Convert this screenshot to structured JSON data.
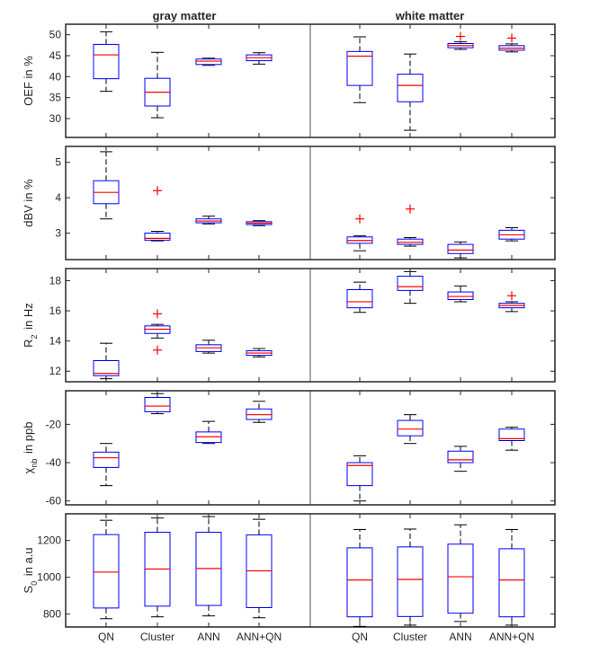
{
  "figure": {
    "column_titles": [
      "gray matter",
      "white matter"
    ],
    "categories": [
      "QN",
      "Cluster",
      "ANN",
      "ANN+QN"
    ],
    "colors": {
      "box": "#0000ff",
      "median": "#ff0000",
      "whisker": "#000000",
      "outlier": "#ff0000",
      "axes": "#262626"
    }
  },
  "chart_data": [
    {
      "type": "box",
      "ylabel": "OEF in %",
      "ylim": [
        25.5,
        52.5
      ],
      "yticks": [
        30,
        35,
        40,
        45,
        50
      ],
      "groups": [
        {
          "name": "gray matter",
          "boxes": [
            {
              "category": "QN",
              "whisker_low": 36.5,
              "q1": 39.5,
              "median": 45.2,
              "q3": 47.7,
              "whisker_high": 50.7,
              "outliers": []
            },
            {
              "category": "Cluster",
              "whisker_low": 30.2,
              "q1": 33.0,
              "median": 36.3,
              "q3": 39.6,
              "whisker_high": 45.8,
              "outliers": []
            },
            {
              "category": "ANN",
              "whisker_low": 42.7,
              "q1": 42.9,
              "median": 43.7,
              "q3": 44.2,
              "whisker_high": 44.4,
              "outliers": []
            },
            {
              "category": "ANN+QN",
              "whisker_low": 43.0,
              "q1": 43.8,
              "median": 44.5,
              "q3": 45.2,
              "whisker_high": 45.7,
              "outliers": []
            }
          ]
        },
        {
          "name": "white matter",
          "boxes": [
            {
              "category": "QN",
              "whisker_low": 33.8,
              "q1": 37.9,
              "median": 44.9,
              "q3": 46.0,
              "whisker_high": 49.5,
              "outliers": []
            },
            {
              "category": "Cluster",
              "whisker_low": 27.2,
              "q1": 34.0,
              "median": 37.9,
              "q3": 40.6,
              "whisker_high": 45.4,
              "outliers": []
            },
            {
              "category": "ANN",
              "whisker_low": 46.5,
              "q1": 46.9,
              "median": 47.4,
              "q3": 47.9,
              "whisker_high": 48.3,
              "outliers": [
                49.6
              ]
            },
            {
              "category": "ANN+QN",
              "whisker_low": 45.9,
              "q1": 46.3,
              "median": 46.8,
              "q3": 47.4,
              "whisker_high": 47.8,
              "outliers": [
                49.2
              ]
            }
          ]
        }
      ]
    },
    {
      "type": "box",
      "ylabel": "dBV in %",
      "ylim": [
        2.25,
        5.45
      ],
      "yticks": [
        3,
        4,
        5
      ],
      "groups": [
        {
          "name": "gray matter",
          "boxes": [
            {
              "category": "QN",
              "whisker_low": 3.4,
              "q1": 3.83,
              "median": 4.15,
              "q3": 4.48,
              "whisker_high": 5.3,
              "outliers": []
            },
            {
              "category": "Cluster",
              "whisker_low": 2.78,
              "q1": 2.8,
              "median": 2.85,
              "q3": 3.0,
              "whisker_high": 3.05,
              "outliers": [
                4.2
              ]
            },
            {
              "category": "ANN",
              "whisker_low": 3.26,
              "q1": 3.29,
              "median": 3.34,
              "q3": 3.4,
              "whisker_high": 3.48,
              "outliers": []
            },
            {
              "category": "ANN+QN",
              "whisker_low": 3.21,
              "q1": 3.24,
              "median": 3.28,
              "q3": 3.32,
              "whisker_high": 3.35,
              "outliers": []
            }
          ]
        },
        {
          "name": "white matter",
          "boxes": [
            {
              "category": "QN",
              "whisker_low": 2.5,
              "q1": 2.71,
              "median": 2.79,
              "q3": 2.89,
              "whisker_high": 2.92,
              "outliers": [
                3.4
              ]
            },
            {
              "category": "Cluster",
              "whisker_low": 2.63,
              "q1": 2.68,
              "median": 2.74,
              "q3": 2.83,
              "whisker_high": 2.87,
              "outliers": [
                3.68
              ]
            },
            {
              "category": "ANN",
              "whisker_low": 2.3,
              "q1": 2.42,
              "median": 2.52,
              "q3": 2.68,
              "whisker_high": 2.75,
              "outliers": []
            },
            {
              "category": "ANN+QN",
              "whisker_low": 2.78,
              "q1": 2.83,
              "median": 2.95,
              "q3": 3.08,
              "whisker_high": 3.15,
              "outliers": []
            }
          ]
        }
      ]
    },
    {
      "type": "box",
      "ylabel": "R_2 in Hz",
      "ylim": [
        11.3,
        18.8
      ],
      "yticks": [
        12,
        14,
        16,
        18
      ],
      "groups": [
        {
          "name": "gray matter",
          "boxes": [
            {
              "category": "QN",
              "whisker_low": 11.5,
              "q1": 11.7,
              "median": 11.85,
              "q3": 12.7,
              "whisker_high": 13.85,
              "outliers": []
            },
            {
              "category": "Cluster",
              "whisker_low": 14.2,
              "q1": 14.5,
              "median": 14.78,
              "q3": 15.0,
              "whisker_high": 15.1,
              "outliers": [
                15.8,
                13.4
              ]
            },
            {
              "category": "ANN",
              "whisker_low": 13.2,
              "q1": 13.3,
              "median": 13.55,
              "q3": 13.75,
              "whisker_high": 14.05,
              "outliers": []
            },
            {
              "category": "ANN+QN",
              "whisker_low": 12.95,
              "q1": 13.05,
              "median": 13.2,
              "q3": 13.35,
              "whisker_high": 13.5,
              "outliers": []
            }
          ]
        },
        {
          "name": "white matter",
          "boxes": [
            {
              "category": "QN",
              "whisker_low": 15.9,
              "q1": 16.2,
              "median": 16.6,
              "q3": 17.4,
              "whisker_high": 17.9,
              "outliers": []
            },
            {
              "category": "Cluster",
              "whisker_low": 16.5,
              "q1": 17.35,
              "median": 17.6,
              "q3": 18.3,
              "whisker_high": 18.6,
              "outliers": []
            },
            {
              "category": "ANN",
              "whisker_low": 16.6,
              "q1": 16.75,
              "median": 16.95,
              "q3": 17.25,
              "whisker_high": 17.65,
              "outliers": []
            },
            {
              "category": "ANN+QN",
              "whisker_low": 15.95,
              "q1": 16.2,
              "median": 16.35,
              "q3": 16.5,
              "whisker_high": 16.6,
              "outliers": [
                17.0
              ]
            }
          ]
        }
      ]
    },
    {
      "type": "box",
      "ylabel": "χ_nb in ppb",
      "ylim": [
        -62,
        -2.5
      ],
      "yticks": [
        -60,
        -40,
        -20
      ],
      "groups": [
        {
          "name": "gray matter",
          "boxes": [
            {
              "category": "QN",
              "whisker_low": -52,
              "q1": -42.5,
              "median": -37.5,
              "q3": -34.5,
              "whisker_high": -30,
              "outliers": []
            },
            {
              "category": "Cluster",
              "whisker_low": -14.5,
              "q1": -13.5,
              "median": -10.5,
              "q3": -6,
              "whisker_high": -4,
              "outliers": []
            },
            {
              "category": "ANN",
              "whisker_low": -30,
              "q1": -29.5,
              "median": -26.5,
              "q3": -24,
              "whisker_high": -18.5,
              "outliers": []
            },
            {
              "category": "ANN+QN",
              "whisker_low": -19,
              "q1": -17.5,
              "median": -15,
              "q3": -12,
              "whisker_high": -8,
              "outliers": []
            }
          ]
        },
        {
          "name": "white matter",
          "boxes": [
            {
              "category": "QN",
              "whisker_low": -60,
              "q1": -52,
              "median": -41.5,
              "q3": -40,
              "whisker_high": -36.5,
              "outliers": []
            },
            {
              "category": "Cluster",
              "whisker_low": -30,
              "q1": -26,
              "median": -22.5,
              "q3": -18,
              "whisker_high": -15,
              "outliers": []
            },
            {
              "category": "ANN",
              "whisker_low": -44.5,
              "q1": -40,
              "median": -38.5,
              "q3": -34,
              "whisker_high": -31.5,
              "outliers": []
            },
            {
              "category": "ANN+QN",
              "whisker_low": -33.5,
              "q1": -28.5,
              "median": -27.5,
              "q3": -22.5,
              "whisker_high": -21.5,
              "outliers": []
            }
          ]
        }
      ]
    },
    {
      "type": "box",
      "ylabel": "S_0 in a.u",
      "ylim": [
        730,
        1345
      ],
      "yticks": [
        800,
        1000,
        1200
      ],
      "groups": [
        {
          "name": "gray matter",
          "boxes": [
            {
              "category": "QN",
              "whisker_low": 775,
              "q1": 833,
              "median": 1028,
              "q3": 1232,
              "whisker_high": 1310,
              "outliers": []
            },
            {
              "category": "Cluster",
              "whisker_low": 785,
              "q1": 843,
              "median": 1045,
              "q3": 1245,
              "whisker_high": 1322,
              "outliers": []
            },
            {
              "category": "ANN",
              "whisker_low": 790,
              "q1": 847,
              "median": 1048,
              "q3": 1245,
              "whisker_high": 1330,
              "outliers": []
            },
            {
              "category": "ANN+QN",
              "whisker_low": 780,
              "q1": 835,
              "median": 1035,
              "q3": 1230,
              "whisker_high": 1315,
              "outliers": []
            }
          ]
        },
        {
          "name": "white matter",
          "boxes": [
            {
              "category": "QN",
              "whisker_low": 733,
              "q1": 785,
              "median": 985,
              "q3": 1160,
              "whisker_high": 1260,
              "outliers": []
            },
            {
              "category": "Cluster",
              "whisker_low": 740,
              "q1": 787,
              "median": 988,
              "q3": 1165,
              "whisker_high": 1262,
              "outliers": []
            },
            {
              "category": "ANN",
              "whisker_low": 760,
              "q1": 805,
              "median": 1003,
              "q3": 1180,
              "whisker_high": 1285,
              "outliers": []
            },
            {
              "category": "ANN+QN",
              "whisker_low": 740,
              "q1": 785,
              "median": 985,
              "q3": 1155,
              "whisker_high": 1260,
              "outliers": []
            }
          ]
        }
      ]
    }
  ]
}
